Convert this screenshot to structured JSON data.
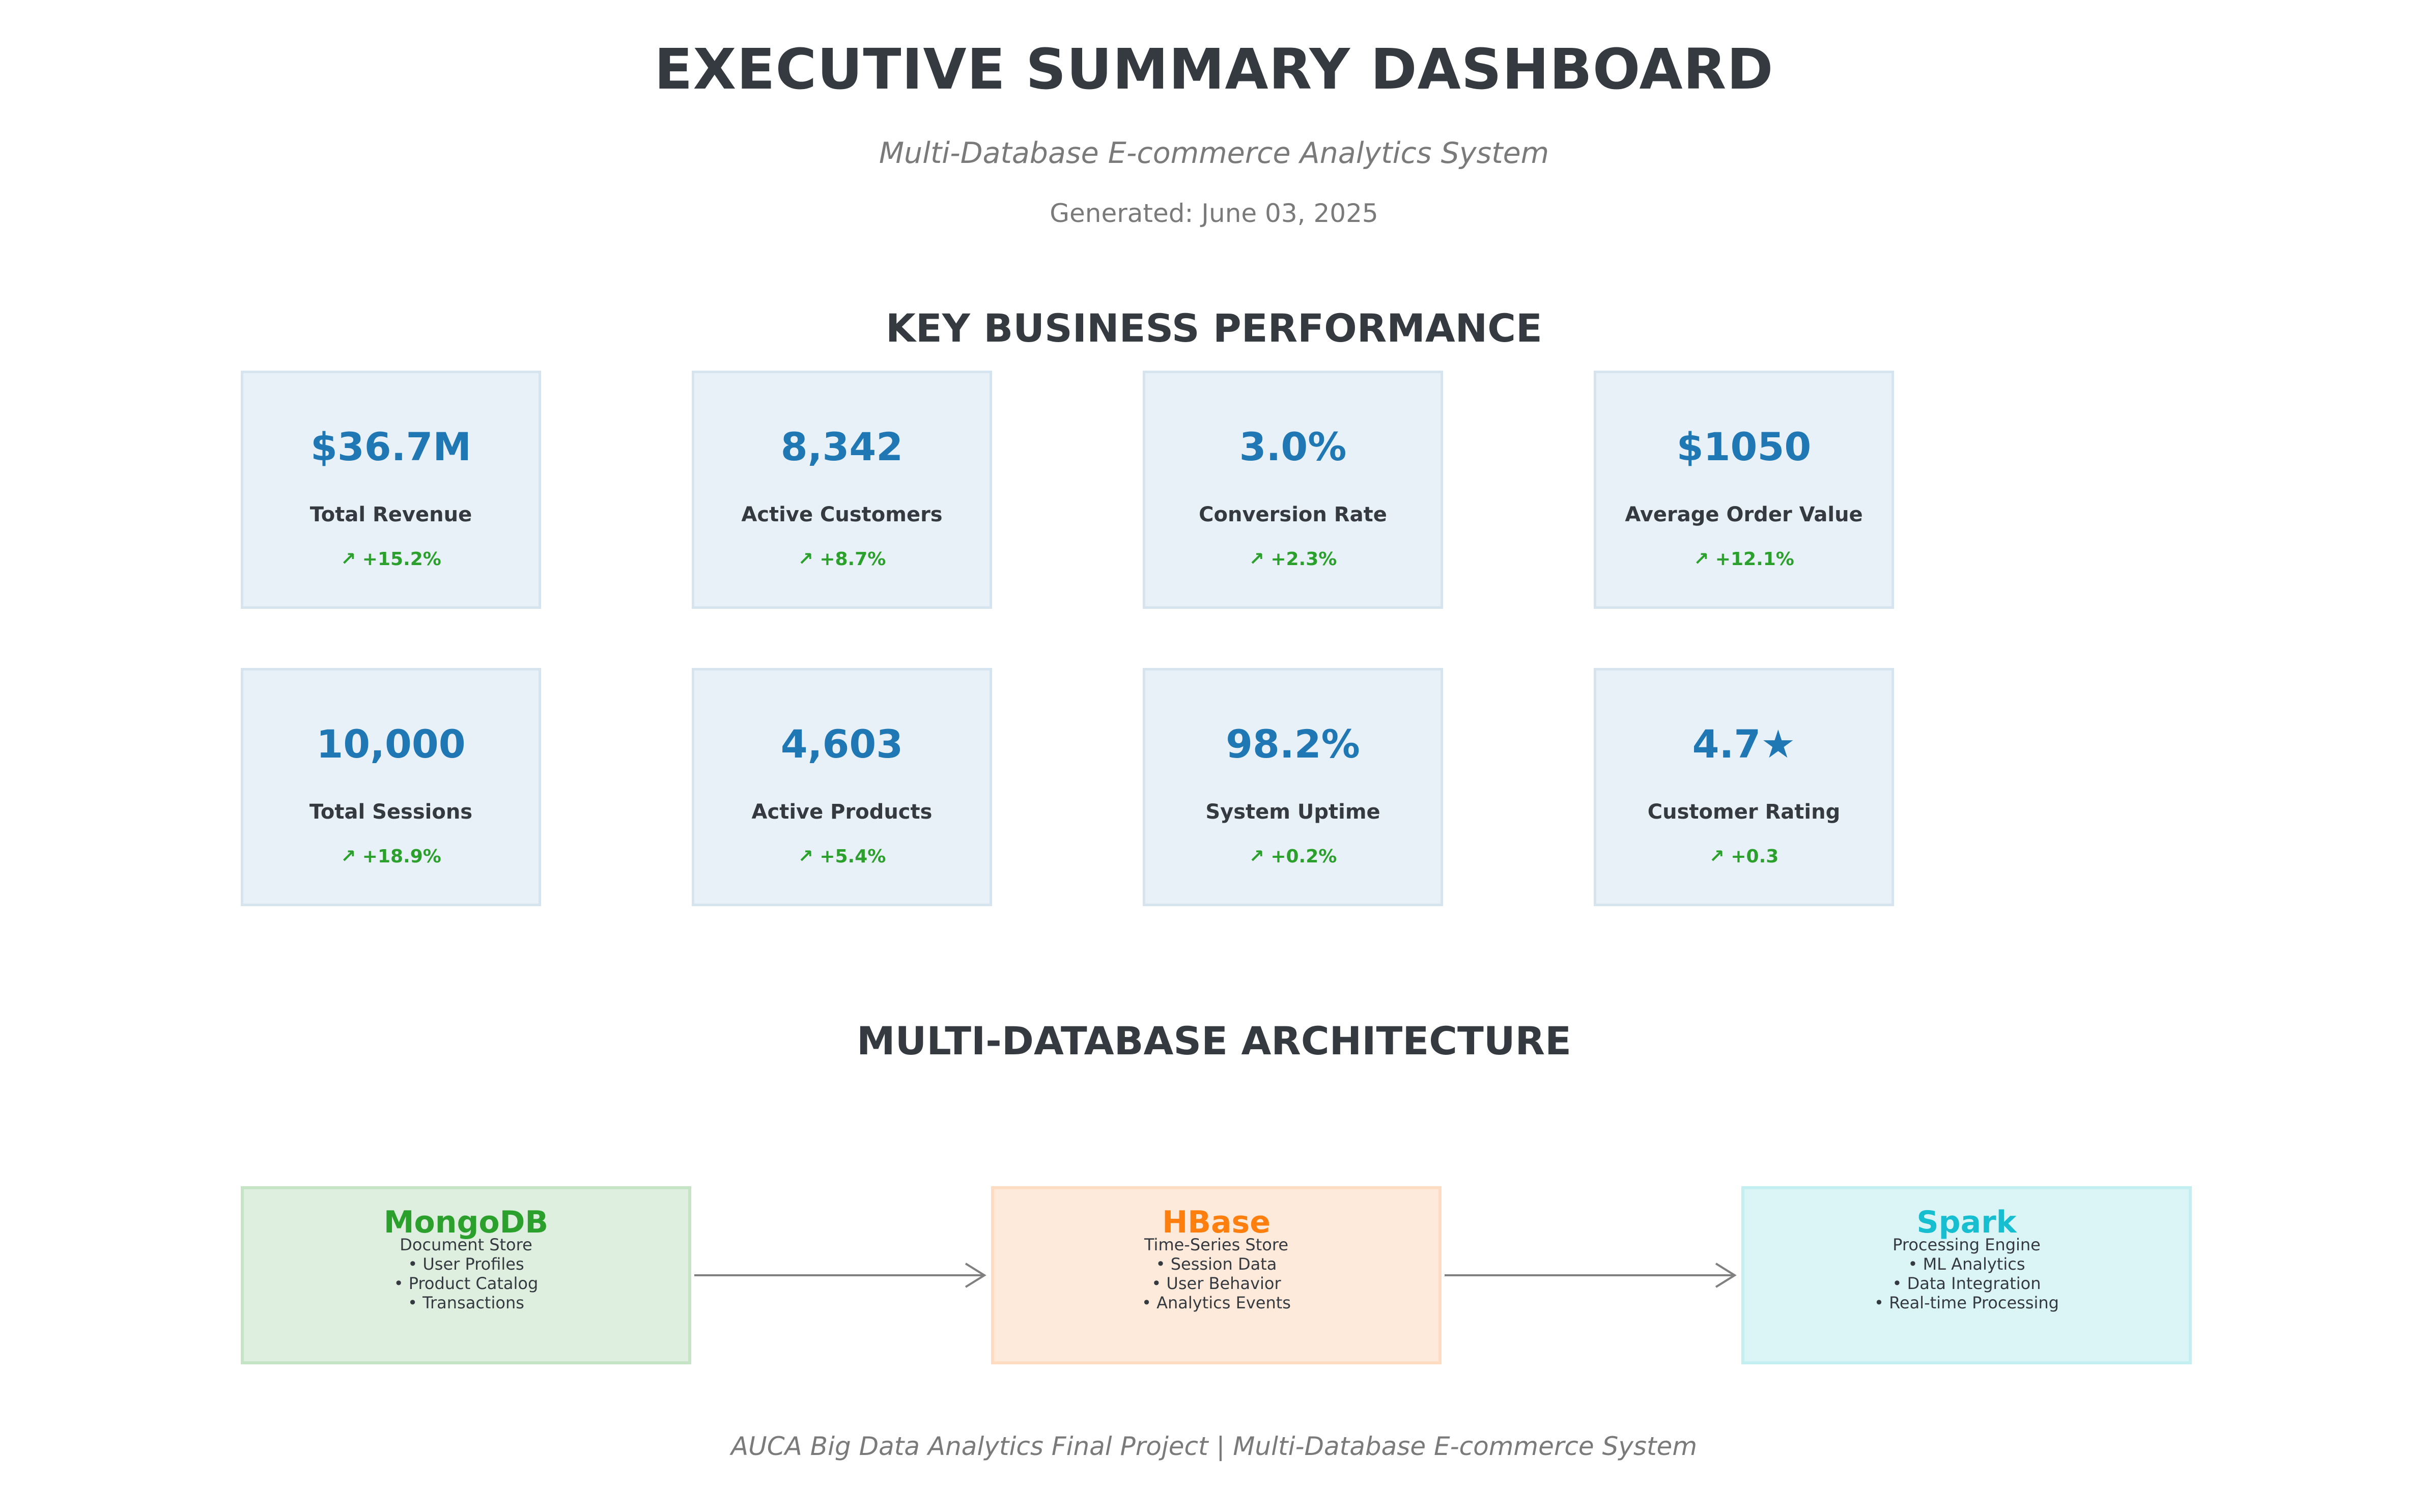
{
  "header": {
    "title": "EXECUTIVE SUMMARY DASHBOARD",
    "subtitle": "Multi-Database E-commerce Analytics System",
    "generated": "Generated: June 03, 2025"
  },
  "kpi_section": {
    "title": "KEY BUSINESS PERFORMANCE",
    "cards": [
      {
        "value": "$36.7M",
        "label": "Total Revenue",
        "change": "↗ +15.2%"
      },
      {
        "value": "8,342",
        "label": "Active Customers",
        "change": "↗ +8.7%"
      },
      {
        "value": "3.0%",
        "label": "Conversion Rate",
        "change": "↗ +2.3%"
      },
      {
        "value": "$1050",
        "label": "Average Order Value",
        "change": "↗ +12.1%"
      },
      {
        "value": "10,000",
        "label": "Total Sessions",
        "change": "↗ +18.9%"
      },
      {
        "value": "4,603",
        "label": "Active Products",
        "change": "↗ +5.4%"
      },
      {
        "value": "98.2%",
        "label": "System Uptime",
        "change": "↗ +0.2%"
      },
      {
        "value": "4.7★",
        "label": "Customer Rating",
        "change": "↗ +0.3"
      }
    ]
  },
  "architecture": {
    "title": "MULTI-DATABASE ARCHITECTURE",
    "databases": [
      {
        "name": "MongoDB",
        "type": "Document Store",
        "items": [
          "• User Profiles",
          "• Product Catalog",
          "• Transactions"
        ],
        "name_color": "#2ca02c",
        "fill": "#dfefdf",
        "border": "#c5e3c5"
      },
      {
        "name": "HBase",
        "type": "Time-Series Store",
        "items": [
          "• Session Data",
          "• User Behavior",
          "• Analytics Events"
        ],
        "name_color": "#ff7f0e",
        "fill": "#feeadb",
        "border": "#fddcc2"
      },
      {
        "name": "Spark",
        "type": "Processing Engine",
        "items": [
          "• ML Analytics",
          "• Data Integration",
          "• Real-time Processing"
        ],
        "name_color": "#17becf",
        "fill": "#dbf5f7",
        "border": "#c3eef2"
      }
    ]
  },
  "footer": {
    "text": "AUCA Big Data Analytics Final Project | Multi-Database E-commerce System"
  },
  "colors": {
    "kpi_value": "#1f77b4",
    "kpi_change": "#2ca02c",
    "heading": "#343a40",
    "muted": "#7a7a7a",
    "arrow": "#808080"
  }
}
